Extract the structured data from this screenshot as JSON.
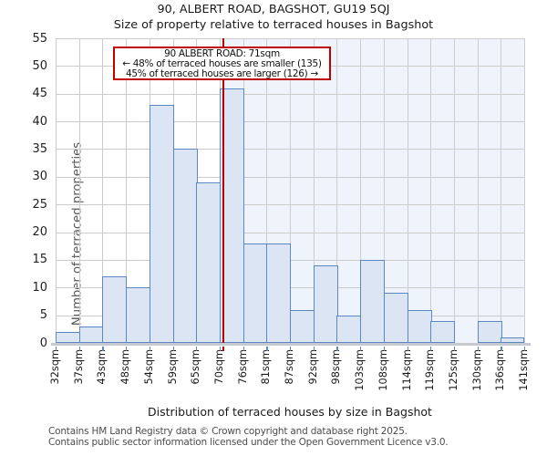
{
  "title": "90, ALBERT ROAD, BAGSHOT, GU19 5QJ",
  "subtitle": "Size of property relative to terraced houses in Bagshot",
  "annotation": {
    "line1": "90 ALBERT ROAD: 71sqm",
    "line2": "← 48% of terraced houses are smaller (135)",
    "line3": "45% of terraced houses are larger (126) →"
  },
  "chart_data": {
    "type": "bar",
    "title": "90, ALBERT ROAD, BAGSHOT, GU19 5QJ",
    "subtitle": "Size of property relative to terraced houses in Bagshot",
    "xlabel": "Distribution of terraced houses by size in Bagshot",
    "ylabel": "Number of terraced properties",
    "bin_edges_sqm": [
      32,
      37,
      43,
      48,
      54,
      59,
      65,
      70,
      76,
      81,
      87,
      92,
      98,
      103,
      108,
      114,
      119,
      125,
      130,
      136,
      141
    ],
    "bin_labels": [
      "32sqm",
      "37sqm",
      "43sqm",
      "48sqm",
      "54sqm",
      "59sqm",
      "65sqm",
      "70sqm",
      "76sqm",
      "81sqm",
      "87sqm",
      "92sqm",
      "98sqm",
      "103sqm",
      "108sqm",
      "114sqm",
      "119sqm",
      "125sqm",
      "130sqm",
      "136sqm",
      "141sqm"
    ],
    "values": [
      2,
      3,
      12,
      10,
      43,
      35,
      29,
      46,
      18,
      18,
      6,
      14,
      5,
      15,
      9,
      6,
      4,
      0,
      4,
      1
    ],
    "marker_value_sqm": 71,
    "ylim": [
      0,
      55
    ],
    "ytick_step": 5,
    "grid": true,
    "legend": "none",
    "colors": {
      "bar_fill": "#dbe5f4",
      "bar_edge": "#5b87c5",
      "marker_line": "#c00000",
      "annotation_border": "#c00000",
      "shade_right_of_marker": "#eff3fb",
      "gridline": "#cccccc",
      "axis_line": "#c6cad1"
    }
  },
  "footer": {
    "line1": "Contains HM Land Registry data © Crown copyright and database right 2025.",
    "line2": "Contains public sector information licensed under the Open Government Licence v3.0."
  }
}
